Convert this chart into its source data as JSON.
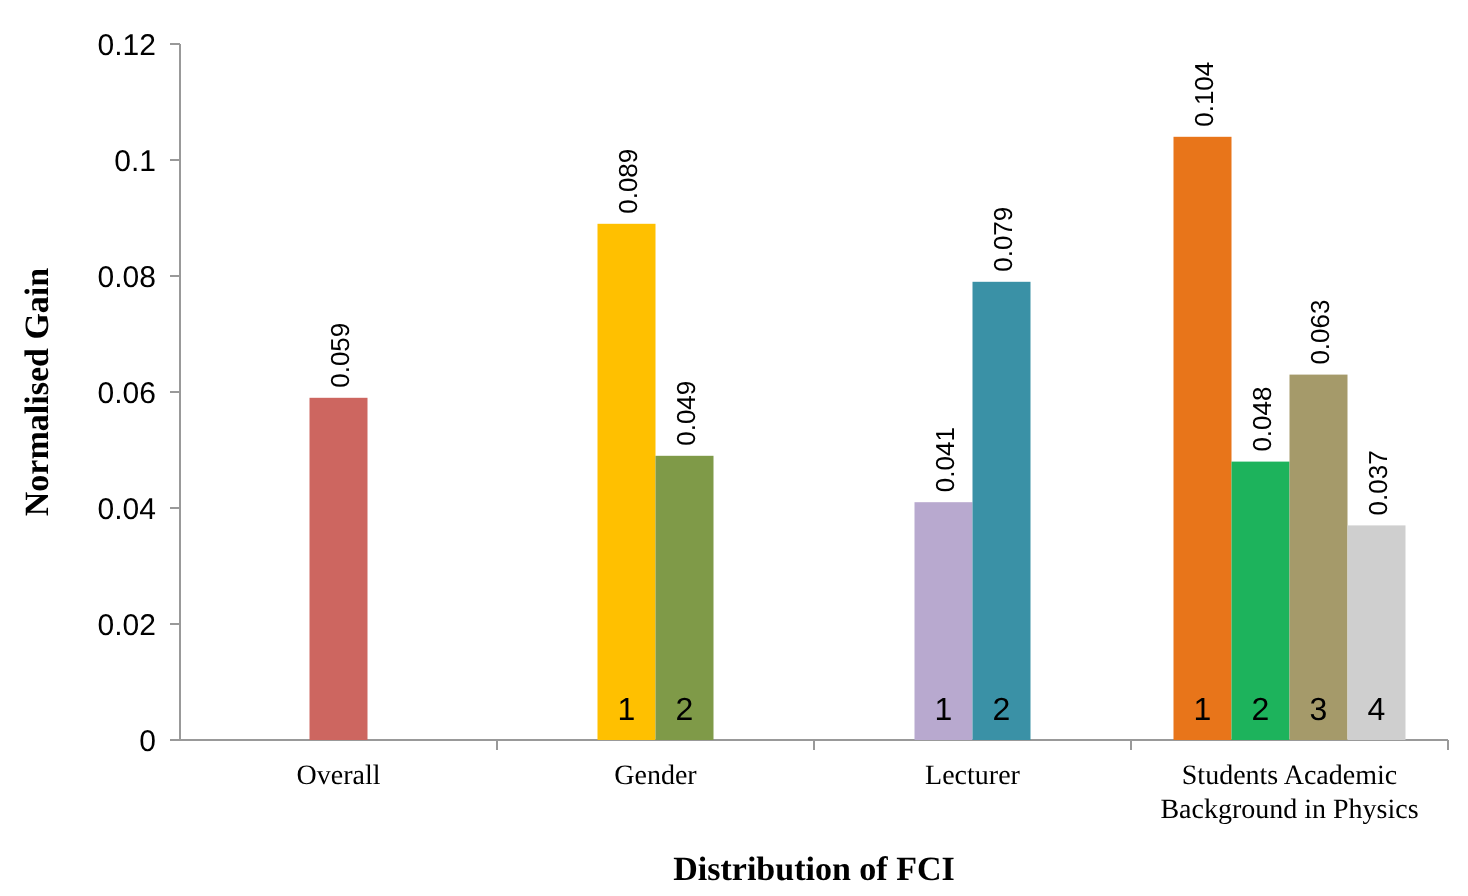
{
  "chart_data": {
    "type": "bar",
    "xlabel": "Distribution of FCI",
    "ylabel": "Normalised Gain",
    "categories": [
      "Overall",
      "Gender",
      "Lecturer",
      "Students Academic Background in Physics"
    ],
    "series": [
      {
        "colors": [
          "#cd6660",
          null,
          null,
          null
        ],
        "values": [
          0.059,
          null,
          null,
          null
        ]
      },
      {
        "name": "1",
        "colors": [
          null,
          "#ffc000",
          "#b8a9cf",
          "#e8751a"
        ],
        "values": [
          null,
          0.089,
          0.041,
          0.104
        ]
      },
      {
        "name": "2",
        "colors": [
          null,
          "#7f9a48",
          "#3a91a6",
          "#1db35c"
        ],
        "values": [
          null,
          0.049,
          0.079,
          0.048
        ]
      },
      {
        "name": "3",
        "colors": [
          null,
          null,
          null,
          "#a59a6a"
        ],
        "values": [
          null,
          null,
          null,
          0.063
        ]
      },
      {
        "name": "4",
        "colors": [
          null,
          null,
          null,
          "#cfcfcf"
        ],
        "values": [
          null,
          null,
          null,
          0.037
        ]
      }
    ],
    "ylim": [
      0,
      0.12
    ],
    "yticks": [
      0,
      0.02,
      0.04,
      0.06,
      0.08,
      0.1,
      0.12
    ],
    "grid": false,
    "data_labels": true
  }
}
